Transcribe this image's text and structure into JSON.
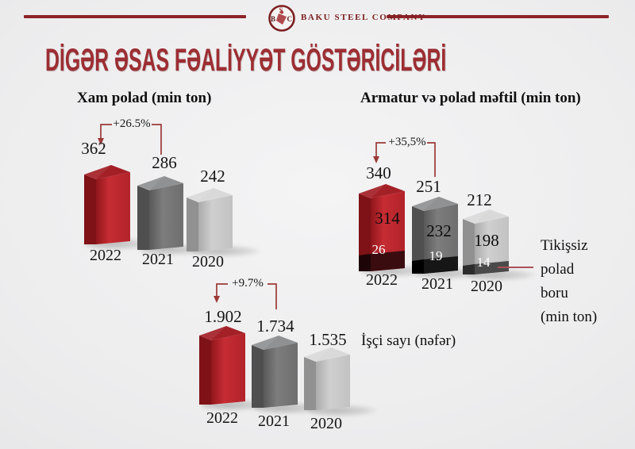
{
  "header": {
    "company_name": "BAKU STEEL COMPANY",
    "logo": {
      "b": "B",
      "s": "S",
      "c": "C"
    }
  },
  "page_title": "DİGƏR ƏSAS FƏALİYYƏT GÖSTƏRİCİLƏRİ",
  "colors": {
    "accent_red_bar": "#b5242a",
    "gray_bar": "#6f6f6f",
    "light_gray_bar": "#c3c3c3",
    "maroon_segment": "#3a0c0f",
    "black_segment": "#151515",
    "dark_gray_segment": "#4a4a4a",
    "title_red": "#9c2e33",
    "header_line_red": "#8e2427",
    "bracket_red": "#9b3a37"
  },
  "charts": {
    "xam_polad": {
      "title": "Xam polad (min ton)",
      "annotation": "+26.5%",
      "bars": [
        {
          "year": "2022",
          "value": "362"
        },
        {
          "year": "2021",
          "value": "286"
        },
        {
          "year": "2020",
          "value": "242"
        }
      ]
    },
    "armatur": {
      "title": "Armatur və polad məftil (min ton)",
      "annotation": "+35,5%",
      "side_label_lines": [
        "Tikişsiz",
        "polad",
        "boru",
        "(min ton)"
      ],
      "bars": [
        {
          "year": "2022",
          "total": "340",
          "main": "314",
          "bottom": "26"
        },
        {
          "year": "2021",
          "total": "251",
          "main": "232",
          "bottom": "19"
        },
        {
          "year": "2020",
          "total": "212",
          "main": "198",
          "bottom": "14"
        }
      ]
    },
    "isci_sayi": {
      "label": "İşçi sayı (nəfər)",
      "annotation": "+9.7%",
      "bars": [
        {
          "year": "2022",
          "value": "1.902"
        },
        {
          "year": "2021",
          "value": "1.734"
        },
        {
          "year": "2020",
          "value": "1.535"
        }
      ]
    }
  },
  "chart_data": [
    {
      "type": "bar",
      "title": "Xam polad (min ton)",
      "categories": [
        "2022",
        "2021",
        "2020"
      ],
      "values": [
        362,
        286,
        242
      ],
      "unit": "min ton",
      "annotation": {
        "text": "+26.5%",
        "change_pct": 26.5,
        "from": "2021",
        "to": "2022"
      },
      "bar_colors": [
        "#b5242a",
        "#6f6f6f",
        "#c3c3c3"
      ],
      "grid": false,
      "legend": false
    },
    {
      "type": "bar",
      "stacked": true,
      "title": "Armatur və polad məftil (min ton)",
      "categories": [
        "2022",
        "2021",
        "2020"
      ],
      "series": [
        {
          "name": "Armatur və polad məftil (min ton)",
          "values": [
            314,
            232,
            198
          ],
          "colors": [
            "#b5242a",
            "#6f6f6f",
            "#c3c3c3"
          ]
        },
        {
          "name": "Tikişsiz polad boru (min ton)",
          "values": [
            26,
            19,
            14
          ],
          "colors": [
            "#3a0c0f",
            "#151515",
            "#4a4a4a"
          ]
        }
      ],
      "totals": [
        340,
        251,
        212
      ],
      "unit": "min ton",
      "annotation": {
        "text": "+35,5%",
        "change_pct": 35.5,
        "from": "2021",
        "to": "2022"
      },
      "grid": false,
      "legend": false
    },
    {
      "type": "bar",
      "title": "İşçi sayı (nəfər)",
      "categories": [
        "2022",
        "2021",
        "2020"
      ],
      "values": [
        1902,
        1734,
        1535
      ],
      "value_labels": [
        "1.902",
        "1.734",
        "1.535"
      ],
      "unit": "nəfər",
      "annotation": {
        "text": "+9.7%",
        "change_pct": 9.7,
        "from": "2021",
        "to": "2022"
      },
      "bar_colors": [
        "#b5242a",
        "#6f6f6f",
        "#c3c3c3"
      ],
      "grid": false,
      "legend": false
    }
  ]
}
